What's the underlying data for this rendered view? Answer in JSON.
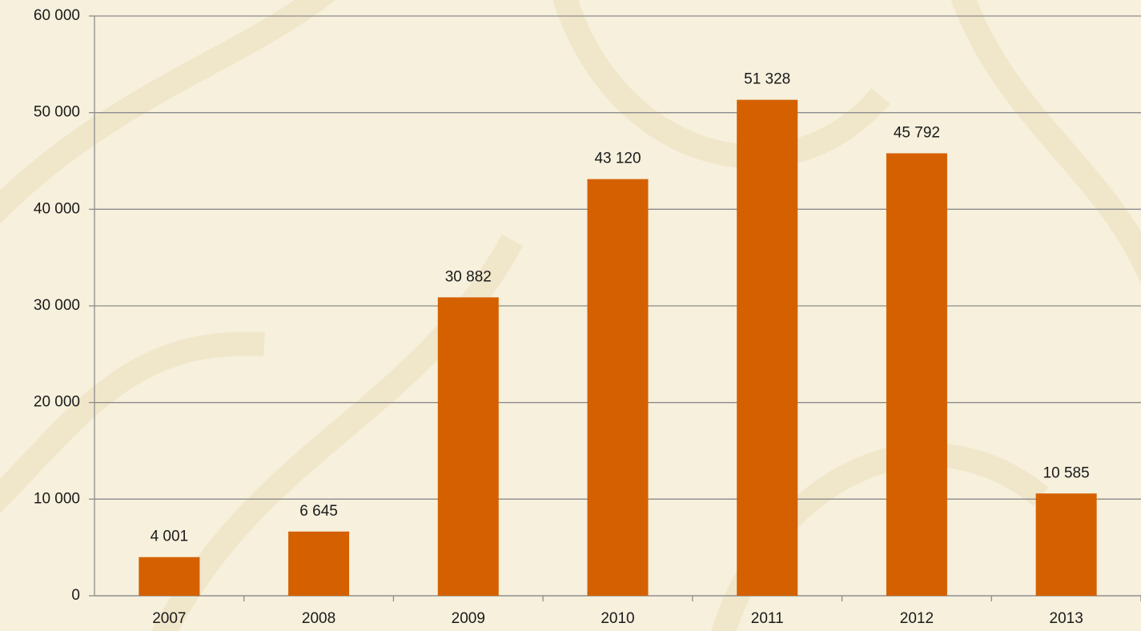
{
  "chart_data": {
    "type": "bar",
    "categories": [
      "2007",
      "2008",
      "2009",
      "2010",
      "2011",
      "2012",
      "2013"
    ],
    "values": [
      4001,
      6645,
      30882,
      43120,
      51328,
      45792,
      10585
    ],
    "value_labels": [
      "4 001",
      "6 645",
      "30 882",
      "43 120",
      "51 328",
      "45 792",
      "10 585"
    ],
    "color": "#d46000",
    "ylim": [
      0,
      60000
    ],
    "yticks": [
      0,
      {
        "value": 10000,
        "label": "10 000"
      },
      {
        "value": 20000,
        "label": "20 000"
      },
      {
        "value": 30000,
        "label": "30 000"
      },
      {
        "value": 40000,
        "label": "40 000"
      },
      {
        "value": 50000,
        "label": "50 000"
      },
      {
        "value": 60000,
        "label": "60 000"
      }
    ],
    "grid": true
  }
}
